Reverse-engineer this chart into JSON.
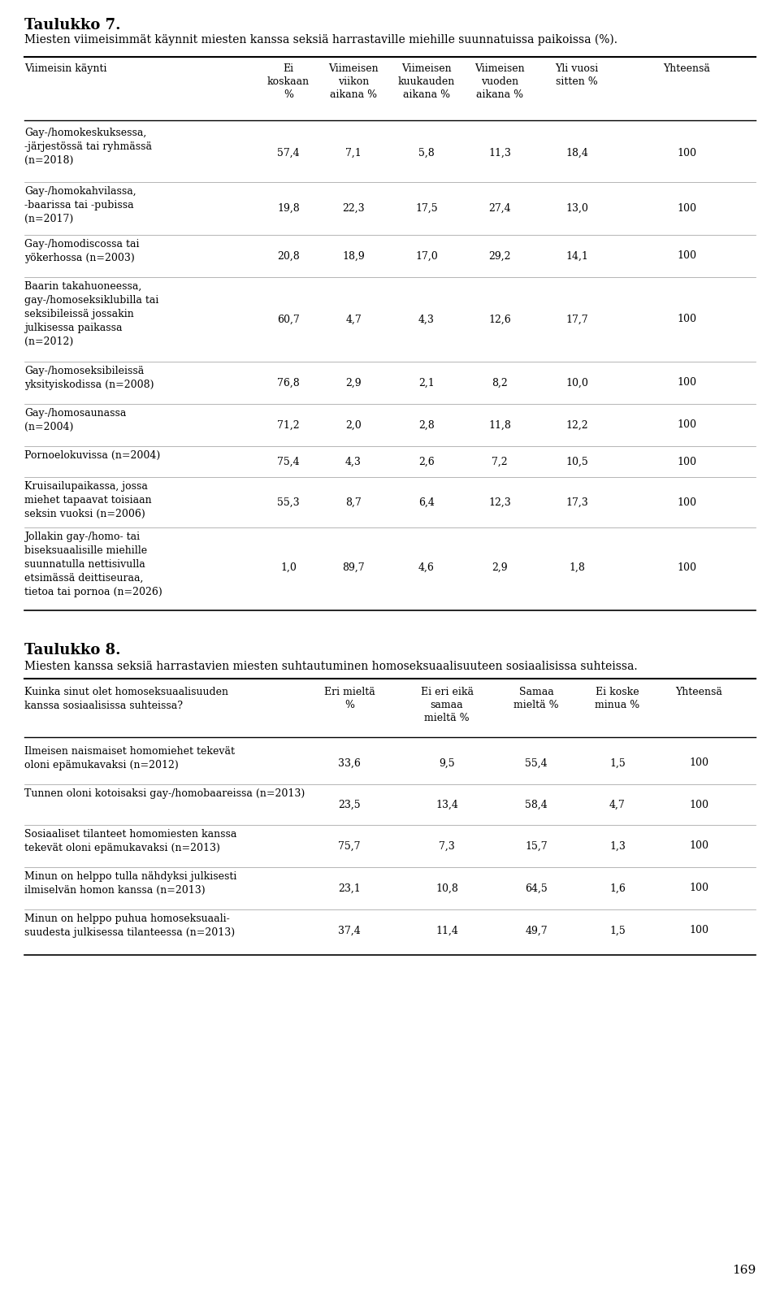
{
  "title1": "Taulukko 7.",
  "subtitle1": "Miesten viimeisimmät käynnit miesten kanssa seksiä harrastaville miehille suunnatuissa paikoissa (%).",
  "table1_rows": [
    [
      "Gay-/homokeskuksessa,\n-järjestössä tai ryhmässä\n(n=2018)",
      "57,4",
      "7,1",
      "5,8",
      "11,3",
      "18,4",
      "100"
    ],
    [
      "Gay-/homokahvilassa,\n-baarissa tai -pubissa\n(n=2017)",
      "19,8",
      "22,3",
      "17,5",
      "27,4",
      "13,0",
      "100"
    ],
    [
      "Gay-/homodiscossa tai\nyökerhossa (n=2003)",
      "20,8",
      "18,9",
      "17,0",
      "29,2",
      "14,1",
      "100"
    ],
    [
      "Baarin takahuoneessa,\ngay-/homoseksiklubilla tai\nseksibileissä jossakin\njulkisessa paikassa\n(n=2012)",
      "60,7",
      "4,7",
      "4,3",
      "12,6",
      "17,7",
      "100"
    ],
    [
      "Gay-/homoseksibileissä\nyksityiskodissa (n=2008)",
      "76,8",
      "2,9",
      "2,1",
      "8,2",
      "10,0",
      "100"
    ],
    [
      "Gay-/homosaunassa\n(n=2004)",
      "71,2",
      "2,0",
      "2,8",
      "11,8",
      "12,2",
      "100"
    ],
    [
      "Pornoelokuvissa (n=2004)",
      "75,4",
      "4,3",
      "2,6",
      "7,2",
      "10,5",
      "100"
    ],
    [
      "Kruisailupaikassa, jossa\nmiehet tapaavat toisiaan\nseksin vuoksi (n=2006)",
      "55,3",
      "8,7",
      "6,4",
      "12,3",
      "17,3",
      "100"
    ],
    [
      "Jollakin gay-/homo- tai\nbiseksuaalisille miehille\nsuunnatulla nettisivulla\netsimässä deittiseuraa,\ntietoa tai pornoa (n=2026)",
      "1,0",
      "89,7",
      "4,6",
      "2,9",
      "1,8",
      "100"
    ]
  ],
  "title2": "Taulukko 8.",
  "subtitle2": "Miesten kanssa seksiä harrastavien miesten suhtautuminen homoseksuaalisuuteen sosiaalisissa suhteissa.",
  "table2_rows": [
    [
      "Ilmeisen naismaiset homomiehet tekevät\noloni epämukavaksi (n=2012)",
      "33,6",
      "9,5",
      "55,4",
      "1,5",
      "100"
    ],
    [
      "Tunnen oloni kotoisaksi gay-/homobaareissa (n=2013)",
      "23,5",
      "13,4",
      "58,4",
      "4,7",
      "100"
    ],
    [
      "Sosiaaliset tilanteet homomiesten kanssa\ntekevät oloni epämukavaksi (n=2013)",
      "75,7",
      "7,3",
      "15,7",
      "1,3",
      "100"
    ],
    [
      "Minun on helppo tulla nähdyksi julkisesti\nilmiselvän homon kanssa (n=2013)",
      "23,1",
      "10,8",
      "64,5",
      "1,6",
      "100"
    ],
    [
      "Minun on helppo puhua homoseksuaali-\nsuudesta julkisessa tilanteessa (n=2013)",
      "37,4",
      "11,4",
      "49,7",
      "1,5",
      "100"
    ]
  ],
  "page_number": "169",
  "bg_color": "#ffffff",
  "text_color": "#000000"
}
